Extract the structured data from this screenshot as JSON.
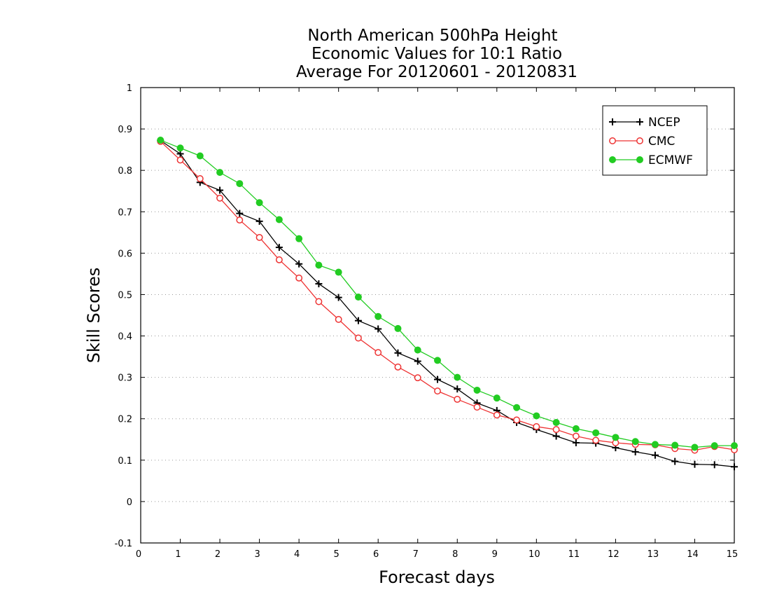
{
  "chart_data": {
    "type": "line",
    "title_lines": [
      "North American 500hPa Height",
      "Economic Values for 10:1 Ratio",
      "Average For 20120601 - 20120831"
    ],
    "xlabel": "Forecast days",
    "ylabel": "Skill Scores",
    "xlim": [
      0,
      15
    ],
    "ylim": [
      -0.1,
      1
    ],
    "x_ticks": [
      0,
      1,
      2,
      3,
      4,
      5,
      6,
      7,
      8,
      9,
      10,
      11,
      12,
      13,
      14,
      15
    ],
    "x_tick_labels": [
      "0",
      "1",
      "2",
      "3",
      "4",
      "5",
      "6",
      "7",
      "8",
      "9",
      "10",
      "11",
      "12",
      "13",
      "14",
      "15"
    ],
    "y_ticks": [
      -0.1,
      0,
      0.1,
      0.2,
      0.3,
      0.4,
      0.5,
      0.6,
      0.7,
      0.8,
      0.9,
      1
    ],
    "y_tick_labels": [
      "-0.1",
      "0",
      "0.1",
      "0.2",
      "0.3",
      "0.4",
      "0.5",
      "0.6",
      "0.7",
      "0.8",
      "0.9",
      "1"
    ],
    "grid": "horizontal-dotted",
    "legend_position": "top-right",
    "x": [
      0.5,
      1,
      1.5,
      2,
      2.5,
      3,
      3.5,
      4,
      4.5,
      5,
      5.5,
      6,
      6.5,
      7,
      7.5,
      8,
      8.5,
      9,
      9.5,
      10,
      10.5,
      11,
      11.5,
      12,
      12.5,
      13,
      13.5,
      14,
      14.5,
      15
    ],
    "series": [
      {
        "name": "NCEP",
        "color": "#000000",
        "marker": "plus",
        "values": [
          0.872,
          0.84,
          0.771,
          0.752,
          0.696,
          0.677,
          0.614,
          0.574,
          0.526,
          0.493,
          0.437,
          0.417,
          0.359,
          0.339,
          0.295,
          0.272,
          0.238,
          0.22,
          0.191,
          0.174,
          0.158,
          0.142,
          0.141,
          0.13,
          0.12,
          0.112,
          0.097,
          0.09,
          0.089,
          0.084
        ]
      },
      {
        "name": "CMC",
        "color": "#ee3333",
        "marker": "open-circle",
        "values": [
          0.87,
          0.825,
          0.78,
          0.733,
          0.68,
          0.638,
          0.584,
          0.54,
          0.483,
          0.44,
          0.395,
          0.36,
          0.325,
          0.299,
          0.267,
          0.247,
          0.228,
          0.209,
          0.197,
          0.181,
          0.174,
          0.158,
          0.148,
          0.142,
          0.138,
          0.137,
          0.128,
          0.124,
          0.133,
          0.125
        ]
      },
      {
        "name": "ECMWF",
        "color": "#22cc22",
        "marker": "filled-circle",
        "values": [
          0.873,
          0.854,
          0.835,
          0.795,
          0.768,
          0.722,
          0.681,
          0.635,
          0.571,
          0.554,
          0.494,
          0.447,
          0.418,
          0.366,
          0.341,
          0.3,
          0.269,
          0.25,
          0.227,
          0.207,
          0.191,
          0.176,
          0.166,
          0.155,
          0.145,
          0.138,
          0.136,
          0.131,
          0.135,
          0.135
        ]
      }
    ]
  }
}
